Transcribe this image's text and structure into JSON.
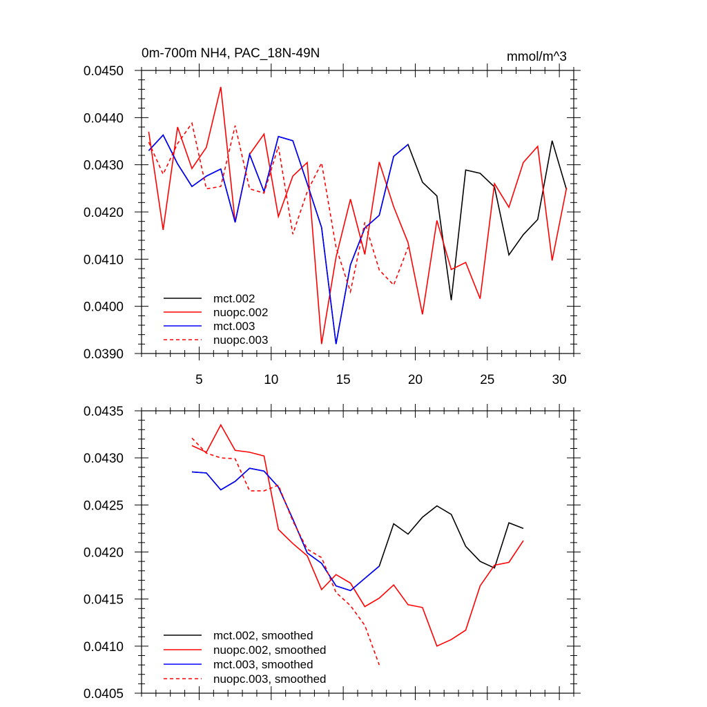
{
  "chart_data": [
    {
      "type": "line",
      "title_left": "0m-700m NH4, PAC_18N-49N",
      "title_right": "mmol/m^3",
      "xlim": [
        1,
        31
      ],
      "ylim": [
        0.039,
        0.045
      ],
      "x_ticks": [
        5,
        10,
        15,
        20,
        25,
        30
      ],
      "x_tick_labels": [
        "5",
        "10",
        "15",
        "20",
        "25",
        "30"
      ],
      "y_ticks": [
        0.039,
        0.04,
        0.041,
        0.042,
        0.043,
        0.044,
        0.045
      ],
      "y_tick_labels": [
        "0.0390",
        "0.0400",
        "0.0410",
        "0.0420",
        "0.0430",
        "0.0440",
        "0.0450"
      ],
      "legend_position": "lower-left",
      "series": [
        {
          "name": "mct.002",
          "color": "#000000",
          "dash": "solid",
          "x": [
            1.5,
            2.5,
            3.5,
            4.5,
            5.5,
            6.5,
            7.5,
            8.5,
            9.5,
            10.5,
            11.5,
            12.5,
            13.5,
            14.5,
            15.5,
            16.5,
            17.5,
            18.5,
            19.5,
            20.5,
            21.5,
            22.5,
            23.5,
            24.5,
            25.5,
            26.5,
            27.5,
            28.5,
            29.5,
            30.5
          ],
          "y": [
            0.0433,
            0.04363,
            0.04302,
            0.04254,
            0.04276,
            0.04291,
            0.04178,
            0.04322,
            0.04243,
            0.0436,
            0.04351,
            0.0426,
            0.04167,
            0.0392,
            0.04088,
            0.04166,
            0.04193,
            0.04318,
            0.04343,
            0.04263,
            0.04234,
            0.04013,
            0.04289,
            0.04282,
            0.04253,
            0.04109,
            0.04152,
            0.04184,
            0.04351,
            0.04247
          ]
        },
        {
          "name": "nuopc.002",
          "color": "#ff0000",
          "dash": "solid",
          "x": [
            1.5,
            2.5,
            3.5,
            4.5,
            5.5,
            6.5,
            7.5,
            8.5,
            9.5,
            10.5,
            11.5,
            12.5,
            13.5,
            14.5,
            15.5,
            16.5,
            17.5,
            18.5,
            19.5,
            20.5,
            21.5,
            22.5,
            23.5,
            24.5,
            25.5,
            26.5,
            27.5,
            28.5,
            29.5,
            30.5
          ],
          "y": [
            0.0437,
            0.04162,
            0.0438,
            0.04292,
            0.04337,
            0.04465,
            0.04178,
            0.04322,
            0.04365,
            0.0419,
            0.04276,
            0.04305,
            0.0392,
            0.04104,
            0.04227,
            0.0411,
            0.04306,
            0.04211,
            0.04135,
            0.03983,
            0.04182,
            0.04078,
            0.04093,
            0.04016,
            0.0426,
            0.0421,
            0.04305,
            0.04339,
            0.04097,
            0.04251
          ]
        },
        {
          "name": "mct.003",
          "color": "#0000ff",
          "dash": "solid",
          "x": [
            1.5,
            2.5,
            3.5,
            4.5,
            5.5,
            6.5,
            7.5,
            8.5,
            9.5,
            10.5,
            11.5,
            12.5,
            13.5,
            14.5,
            15.5,
            16.5,
            17.5,
            18.5,
            19.5
          ],
          "y": [
            0.0433,
            0.04363,
            0.04302,
            0.04254,
            0.04276,
            0.04291,
            0.04178,
            0.04322,
            0.04243,
            0.0436,
            0.04351,
            0.0426,
            0.04167,
            0.0392,
            0.04088,
            0.04166,
            0.04193,
            0.04318,
            0.04343
          ]
        },
        {
          "name": "nuopc.003",
          "color": "#ff0000",
          "dash": "dashed",
          "x": [
            1.5,
            2.5,
            3.5,
            4.5,
            5.5,
            6.5,
            7.5,
            8.5,
            9.5,
            10.5,
            11.5,
            12.5,
            13.5,
            14.5,
            15.5,
            16.5,
            17.5,
            18.5,
            19.5
          ],
          "y": [
            0.04348,
            0.0428,
            0.04345,
            0.04388,
            0.04249,
            0.04254,
            0.04383,
            0.04249,
            0.0424,
            0.04339,
            0.04153,
            0.04243,
            0.04304,
            0.04125,
            0.04031,
            0.04178,
            0.04077,
            0.04045,
            0.04125
          ]
        }
      ]
    },
    {
      "type": "line",
      "xlim": [
        1,
        31
      ],
      "ylim": [
        0.0405,
        0.0435
      ],
      "x_ticks": [
        5,
        10,
        15,
        20,
        25,
        30
      ],
      "y_ticks": [
        0.0405,
        0.041,
        0.0415,
        0.042,
        0.0425,
        0.043,
        0.0435
      ],
      "y_tick_labels": [
        "0.0405",
        "0.0410",
        "0.0415",
        "0.0420",
        "0.0425",
        "0.0430",
        "0.0435"
      ],
      "legend_position": "lower-left",
      "series": [
        {
          "name": "mct.002, smoothed",
          "color": "#000000",
          "dash": "solid",
          "x": [
            4.5,
            5.5,
            6.5,
            7.5,
            8.5,
            9.5,
            10.5,
            11.5,
            12.5,
            13.5,
            14.5,
            15.5,
            16.5,
            17.5,
            18.5,
            19.5,
            20.5,
            21.5,
            22.5,
            23.5,
            24.5,
            25.5,
            26.5,
            27.5
          ],
          "y": [
            0.04285,
            0.04284,
            0.04266,
            0.04275,
            0.04289,
            0.04286,
            0.04269,
            0.04235,
            0.04199,
            0.04188,
            0.04164,
            0.04159,
            0.04172,
            0.04185,
            0.0423,
            0.04219,
            0.04237,
            0.04249,
            0.0424,
            0.04206,
            0.0419,
            0.04183,
            0.04231,
            0.04225
          ]
        },
        {
          "name": "nuopc.002, smoothed",
          "color": "#ff0000",
          "dash": "solid",
          "x": [
            4.5,
            5.5,
            6.5,
            7.5,
            8.5,
            9.5,
            10.5,
            11.5,
            12.5,
            13.5,
            14.5,
            15.5,
            16.5,
            17.5,
            18.5,
            19.5,
            20.5,
            21.5,
            22.5,
            23.5,
            24.5,
            25.5,
            26.5,
            27.5
          ],
          "y": [
            0.04313,
            0.04306,
            0.04335,
            0.04308,
            0.04306,
            0.04302,
            0.04224,
            0.04209,
            0.04196,
            0.0416,
            0.04176,
            0.04167,
            0.04142,
            0.04151,
            0.04165,
            0.04144,
            0.04141,
            0.041,
            0.04107,
            0.04117,
            0.04164,
            0.04186,
            0.04189,
            0.04212
          ]
        },
        {
          "name": "mct.003, smoothed",
          "color": "#0000ff",
          "dash": "solid",
          "x": [
            4.5,
            5.5,
            6.5,
            7.5,
            8.5,
            9.5,
            10.5,
            11.5,
            12.5,
            13.5,
            14.5,
            15.5,
            16.5,
            17.5
          ],
          "y": [
            0.04285,
            0.04284,
            0.04266,
            0.04275,
            0.04289,
            0.04286,
            0.04269,
            0.04235,
            0.04199,
            0.04188,
            0.04164,
            0.04159,
            0.04172,
            0.04185
          ]
        },
        {
          "name": "nuopc.003, smoothed",
          "color": "#ff0000",
          "dash": "dashed",
          "x": [
            4.5,
            5.5,
            6.5,
            7.5,
            8.5,
            9.5,
            10.5,
            11.5,
            12.5,
            13.5,
            14.5,
            15.5,
            16.5,
            17.5
          ],
          "y": [
            0.04321,
            0.04305,
            0.043,
            0.04299,
            0.04265,
            0.04265,
            0.04271,
            0.04233,
            0.04203,
            0.04194,
            0.04157,
            0.04143,
            0.04122,
            0.0408
          ]
        }
      ]
    }
  ]
}
